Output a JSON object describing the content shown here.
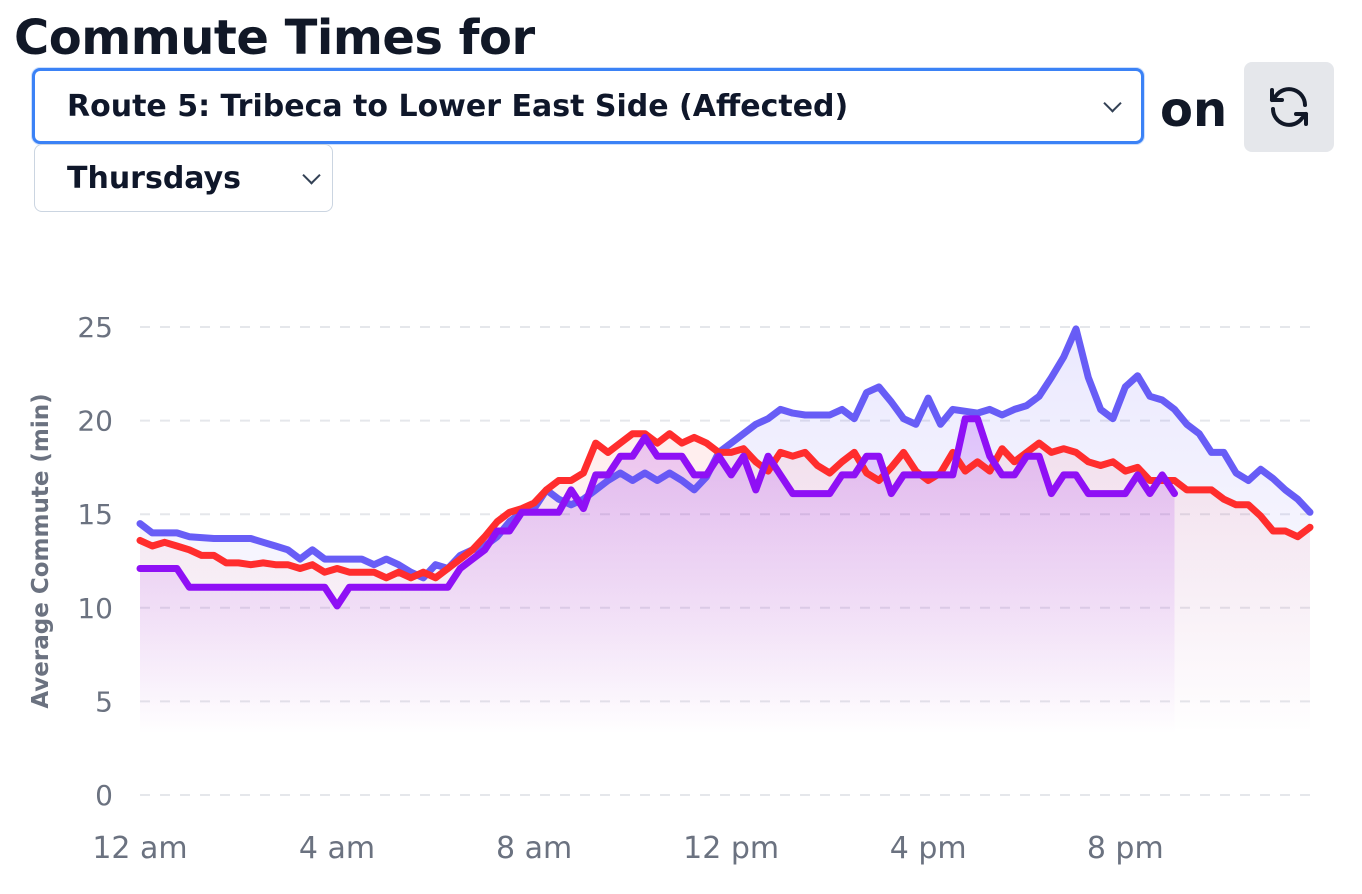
{
  "header": {
    "title": "Commute Times for",
    "on_label": "on"
  },
  "route_select": {
    "value": "Route 5: Tribeca to Lower East Side (Affected)"
  },
  "day_select": {
    "value": "Thursdays"
  },
  "refresh_button": {
    "icon": "refresh-icon"
  },
  "chart_data": {
    "type": "line",
    "ylabel": "Average Commute (min)",
    "xlabel": "",
    "ylim": [
      0,
      25
    ],
    "yticks": [
      0,
      5,
      10,
      15,
      20,
      25
    ],
    "xlim": [
      0,
      23.75
    ],
    "xtick_values": [
      0,
      4,
      8,
      12,
      16,
      20
    ],
    "xtick_labels": [
      "12 am",
      "4 am",
      "8 am",
      "12 pm",
      "4 pm",
      "8 pm"
    ],
    "x_unit": "hour of day",
    "grid": "horizontal dashed",
    "legend": "none",
    "series": [
      {
        "color": "#5b4ff5",
        "points": [
          [
            0,
            14.5
          ],
          [
            0.25,
            14
          ],
          [
            0.5,
            14
          ],
          [
            0.75,
            14
          ],
          [
            1,
            13.8
          ],
          [
            1.5,
            13.7
          ],
          [
            2,
            13.7
          ],
          [
            2.25,
            13.7
          ],
          [
            2.5,
            13.5
          ],
          [
            2.75,
            13.3
          ],
          [
            3,
            13.1
          ],
          [
            3.25,
            12.6
          ],
          [
            3.5,
            13.1
          ],
          [
            3.75,
            12.6
          ],
          [
            4,
            12.6
          ],
          [
            4.25,
            12.6
          ],
          [
            4.5,
            12.6
          ],
          [
            4.75,
            12.3
          ],
          [
            5,
            12.6
          ],
          [
            5.25,
            12.3
          ],
          [
            5.5,
            11.9
          ],
          [
            5.75,
            11.6
          ],
          [
            6,
            12.3
          ],
          [
            6.25,
            12.1
          ],
          [
            6.5,
            12.8
          ],
          [
            6.75,
            13.1
          ],
          [
            7,
            13.3
          ],
          [
            7.25,
            13.8
          ],
          [
            7.5,
            14.6
          ],
          [
            7.75,
            15.1
          ],
          [
            8,
            15.3
          ],
          [
            8.25,
            16.3
          ],
          [
            8.5,
            15.8
          ],
          [
            8.75,
            15.5
          ],
          [
            9,
            15.8
          ],
          [
            9.25,
            16.3
          ],
          [
            9.5,
            16.8
          ],
          [
            9.75,
            17.2
          ],
          [
            10,
            16.8
          ],
          [
            10.25,
            17.2
          ],
          [
            10.5,
            16.8
          ],
          [
            10.75,
            17.2
          ],
          [
            11,
            16.8
          ],
          [
            11.25,
            16.3
          ],
          [
            11.5,
            17
          ],
          [
            11.75,
            18.3
          ],
          [
            12,
            18.8
          ],
          [
            12.25,
            19.3
          ],
          [
            12.5,
            19.8
          ],
          [
            12.75,
            20.1
          ],
          [
            13,
            20.6
          ],
          [
            13.25,
            20.4
          ],
          [
            13.5,
            20.3
          ],
          [
            14,
            20.3
          ],
          [
            14.25,
            20.6
          ],
          [
            14.5,
            20.1
          ],
          [
            14.75,
            21.5
          ],
          [
            15,
            21.8
          ],
          [
            15.25,
            21
          ],
          [
            15.5,
            20.1
          ],
          [
            15.75,
            19.8
          ],
          [
            16,
            21.2
          ],
          [
            16.25,
            19.8
          ],
          [
            16.5,
            20.6
          ],
          [
            17,
            20.4
          ],
          [
            17.25,
            20.6
          ],
          [
            17.5,
            20.3
          ],
          [
            17.75,
            20.6
          ],
          [
            18,
            20.8
          ],
          [
            18.25,
            21.3
          ],
          [
            18.5,
            22.3
          ],
          [
            18.75,
            23.4
          ],
          [
            19,
            24.9
          ],
          [
            19.25,
            22.3
          ],
          [
            19.5,
            20.6
          ],
          [
            19.75,
            20.1
          ],
          [
            20,
            21.8
          ],
          [
            20.25,
            22.4
          ],
          [
            20.5,
            21.3
          ],
          [
            20.75,
            21.1
          ],
          [
            21,
            20.6
          ],
          [
            21.25,
            19.8
          ],
          [
            21.5,
            19.3
          ],
          [
            21.75,
            18.3
          ],
          [
            22,
            18.3
          ],
          [
            22.25,
            17.2
          ],
          [
            22.5,
            16.8
          ],
          [
            22.75,
            17.4
          ],
          [
            23,
            16.9
          ],
          [
            23.25,
            16.3
          ],
          [
            23.5,
            15.8
          ],
          [
            23.75,
            15.1
          ]
        ]
      },
      {
        "color": "#ff2d2d",
        "points": [
          [
            0,
            13.6
          ],
          [
            0.25,
            13.3
          ],
          [
            0.5,
            13.5
          ],
          [
            0.75,
            13.3
          ],
          [
            1,
            13.1
          ],
          [
            1.25,
            12.8
          ],
          [
            1.5,
            12.8
          ],
          [
            1.75,
            12.4
          ],
          [
            2,
            12.4
          ],
          [
            2.25,
            12.3
          ],
          [
            2.5,
            12.4
          ],
          [
            2.75,
            12.3
          ],
          [
            3,
            12.3
          ],
          [
            3.25,
            12.1
          ],
          [
            3.5,
            12.3
          ],
          [
            3.75,
            11.9
          ],
          [
            4,
            12.1
          ],
          [
            4.25,
            11.9
          ],
          [
            4.5,
            11.9
          ],
          [
            4.75,
            11.9
          ],
          [
            5,
            11.6
          ],
          [
            5.25,
            11.9
          ],
          [
            5.5,
            11.6
          ],
          [
            5.75,
            11.9
          ],
          [
            6,
            11.6
          ],
          [
            6.25,
            12.1
          ],
          [
            6.5,
            12.6
          ],
          [
            6.75,
            13.1
          ],
          [
            7,
            13.8
          ],
          [
            7.25,
            14.6
          ],
          [
            7.5,
            15.1
          ],
          [
            7.75,
            15.3
          ],
          [
            8,
            15.6
          ],
          [
            8.25,
            16.3
          ],
          [
            8.5,
            16.8
          ],
          [
            8.75,
            16.8
          ],
          [
            9,
            17.2
          ],
          [
            9.25,
            18.8
          ],
          [
            9.5,
            18.3
          ],
          [
            9.75,
            18.8
          ],
          [
            10,
            19.3
          ],
          [
            10.25,
            19.3
          ],
          [
            10.5,
            18.8
          ],
          [
            10.75,
            19.3
          ],
          [
            11,
            18.8
          ],
          [
            11.25,
            19.1
          ],
          [
            11.5,
            18.8
          ],
          [
            11.75,
            18.3
          ],
          [
            12,
            18.3
          ],
          [
            12.25,
            18.5
          ],
          [
            12.5,
            17.8
          ],
          [
            12.75,
            17.3
          ],
          [
            13,
            18.3
          ],
          [
            13.25,
            18.1
          ],
          [
            13.5,
            18.3
          ],
          [
            13.75,
            17.6
          ],
          [
            14,
            17.2
          ],
          [
            14.25,
            17.8
          ],
          [
            14.5,
            18.3
          ],
          [
            14.75,
            17.2
          ],
          [
            15,
            16.8
          ],
          [
            15.25,
            17.5
          ],
          [
            15.5,
            18.3
          ],
          [
            15.75,
            17.3
          ],
          [
            16,
            16.8
          ],
          [
            16.25,
            17.2
          ],
          [
            16.5,
            18.3
          ],
          [
            16.75,
            17.3
          ],
          [
            17,
            17.8
          ],
          [
            17.25,
            17.3
          ],
          [
            17.5,
            18.5
          ],
          [
            17.75,
            17.8
          ],
          [
            18,
            18.3
          ],
          [
            18.25,
            18.8
          ],
          [
            18.5,
            18.3
          ],
          [
            18.75,
            18.5
          ],
          [
            19,
            18.3
          ],
          [
            19.25,
            17.8
          ],
          [
            19.5,
            17.6
          ],
          [
            19.75,
            17.8
          ],
          [
            20,
            17.3
          ],
          [
            20.25,
            17.5
          ],
          [
            20.5,
            16.8
          ],
          [
            20.75,
            16.8
          ],
          [
            21,
            16.8
          ],
          [
            21.25,
            16.3
          ],
          [
            21.5,
            16.3
          ],
          [
            21.75,
            16.3
          ],
          [
            22,
            15.8
          ],
          [
            22.25,
            15.5
          ],
          [
            22.5,
            15.5
          ],
          [
            22.75,
            14.9
          ],
          [
            23,
            14.1
          ],
          [
            23.25,
            14.1
          ],
          [
            23.5,
            13.8
          ],
          [
            23.75,
            14.3
          ]
        ]
      },
      {
        "color": "#8f10f5",
        "points": [
          [
            0,
            12.1
          ],
          [
            0.5,
            12.1
          ],
          [
            0.75,
            12.1
          ],
          [
            1,
            11.1
          ],
          [
            1.5,
            11.1
          ],
          [
            2,
            11.1
          ],
          [
            2.5,
            11.1
          ],
          [
            3,
            11.1
          ],
          [
            3.5,
            11.1
          ],
          [
            3.75,
            11.1
          ],
          [
            4,
            10.1
          ],
          [
            4.25,
            11.1
          ],
          [
            5,
            11.1
          ],
          [
            6,
            11.1
          ],
          [
            6.25,
            11.1
          ],
          [
            6.5,
            12.1
          ],
          [
            6.75,
            12.6
          ],
          [
            7,
            13.1
          ],
          [
            7.25,
            14.1
          ],
          [
            7.5,
            14.1
          ],
          [
            7.75,
            15.1
          ],
          [
            8,
            15.1
          ],
          [
            8.25,
            15.1
          ],
          [
            8.5,
            15.1
          ],
          [
            8.75,
            16.3
          ],
          [
            9,
            15.3
          ],
          [
            9.25,
            17.1
          ],
          [
            9.5,
            17.1
          ],
          [
            9.75,
            18.1
          ],
          [
            10,
            18.1
          ],
          [
            10.25,
            19.1
          ],
          [
            10.5,
            18.1
          ],
          [
            10.75,
            18.1
          ],
          [
            11,
            18.1
          ],
          [
            11.25,
            17.1
          ],
          [
            11.5,
            17.1
          ],
          [
            11.75,
            18.1
          ],
          [
            12,
            17.1
          ],
          [
            12.25,
            18.1
          ],
          [
            12.5,
            16.3
          ],
          [
            12.75,
            18.1
          ],
          [
            13,
            17.1
          ],
          [
            13.25,
            16.1
          ],
          [
            13.5,
            16.1
          ],
          [
            13.75,
            16.1
          ],
          [
            14,
            16.1
          ],
          [
            14.25,
            17.1
          ],
          [
            14.5,
            17.1
          ],
          [
            14.75,
            18.1
          ],
          [
            15,
            18.1
          ],
          [
            15.25,
            16.1
          ],
          [
            15.5,
            17.1
          ],
          [
            15.75,
            17.1
          ],
          [
            16,
            17.1
          ],
          [
            16.25,
            17.1
          ],
          [
            16.5,
            17.1
          ],
          [
            16.75,
            20.1
          ],
          [
            17,
            20.1
          ],
          [
            17.25,
            18.1
          ],
          [
            17.5,
            17.1
          ],
          [
            17.75,
            17.1
          ],
          [
            18,
            18.1
          ],
          [
            18.25,
            18.1
          ],
          [
            18.5,
            16.1
          ],
          [
            18.75,
            17.1
          ],
          [
            19,
            17.1
          ],
          [
            19.25,
            16.1
          ],
          [
            19.5,
            16.1
          ],
          [
            19.75,
            16.1
          ],
          [
            20,
            16.1
          ],
          [
            20.25,
            17.1
          ],
          [
            20.5,
            16.1
          ],
          [
            20.75,
            17.1
          ],
          [
            21,
            16.1
          ]
        ]
      }
    ]
  }
}
